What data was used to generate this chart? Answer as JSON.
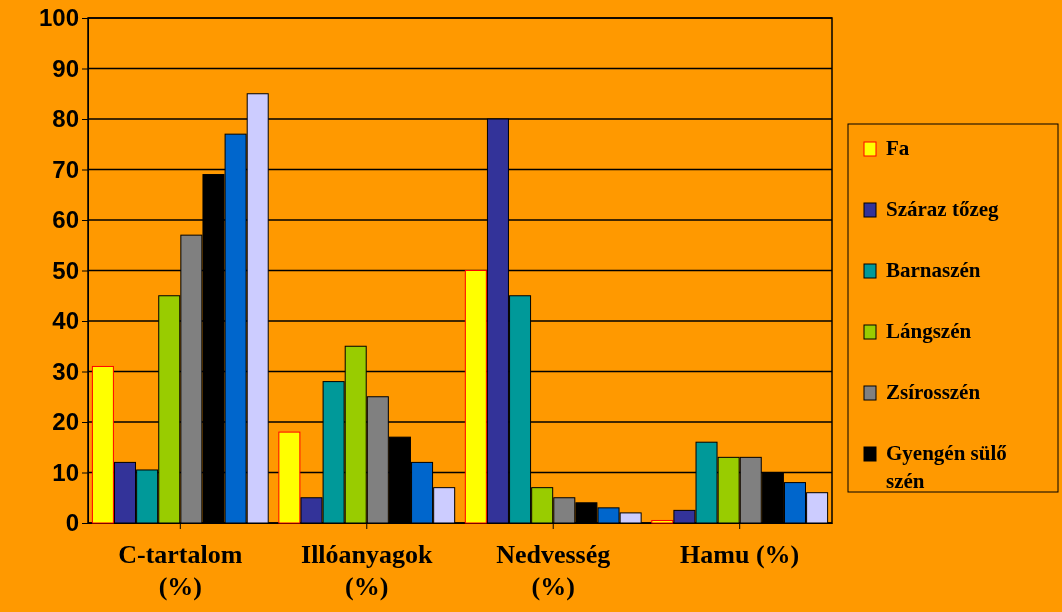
{
  "chart_data": {
    "type": "bar",
    "categories": [
      "C-tartalom (%)",
      "Illóanyagok (%)",
      "Nedvesség (%)",
      "Hamu (%)"
    ],
    "series": [
      {
        "name": "Fa",
        "color": "#ffff00",
        "values": [
          31,
          18,
          50,
          0.5
        ]
      },
      {
        "name": "Száraz tőzeg",
        "color": "#333399",
        "values": [
          12,
          5,
          80,
          2.5
        ]
      },
      {
        "name": "Barnaszén",
        "color": "#009999",
        "values": [
          10.5,
          28,
          45,
          16
        ]
      },
      {
        "name": "Lángszén",
        "color": "#99cc00",
        "values": [
          45,
          35,
          7,
          13
        ]
      },
      {
        "name": "Zsírosszén",
        "color": "#808080",
        "values": [
          57,
          25,
          5,
          13
        ]
      },
      {
        "name": "Gyengén sülő szén",
        "color": "#000000",
        "values": [
          69,
          17,
          4,
          10
        ]
      },
      {
        "color": "#0066cc",
        "values": [
          77,
          12,
          3,
          8
        ]
      },
      {
        "color": "#ccccff",
        "values": [
          85,
          7,
          2,
          6
        ]
      }
    ],
    "ylim": [
      0,
      100
    ],
    "yticks": [
      0,
      10,
      20,
      30,
      40,
      50,
      60,
      70,
      80,
      90,
      100
    ],
    "grid": "y",
    "legend": "right"
  }
}
